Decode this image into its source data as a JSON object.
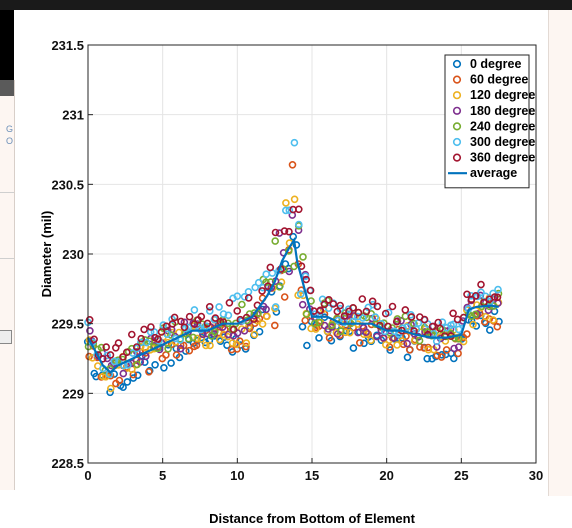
{
  "chart_data": {
    "type": "scatter",
    "title": "",
    "xlabel": "Distance from Bottom of Element",
    "ylabel": "Diameter  (mil)",
    "xlim": [
      0,
      30
    ],
    "ylim": [
      228.5,
      231.5
    ],
    "xticks": [
      "0",
      "5",
      "10",
      "15",
      "20",
      "25",
      "30"
    ],
    "yticks": [
      "228.5",
      "229",
      "229.5",
      "230",
      "230.5",
      "231",
      "231.5"
    ],
    "grid": true,
    "legend_position": "top-right",
    "series": [
      {
        "name": "0 degree",
        "color": "#0072BD",
        "marker": "circle"
      },
      {
        "name": "60 degree",
        "color": "#D95319",
        "marker": "circle"
      },
      {
        "name": "120 degree",
        "color": "#EDB120",
        "marker": "circle"
      },
      {
        "name": "180 degree",
        "color": "#7E2F8E",
        "marker": "circle"
      },
      {
        "name": "240 degree",
        "color": "#77AC30",
        "marker": "circle"
      },
      {
        "name": "300 degree",
        "color": "#4DBEEE",
        "marker": "circle"
      },
      {
        "name": "360 degree",
        "color": "#A2142F",
        "marker": "circle"
      },
      {
        "name": "average",
        "color": "#0072BD",
        "marker": "line"
      }
    ],
    "average": {
      "x": [
        0,
        0.5,
        1,
        1.5,
        2,
        3,
        4,
        5,
        6,
        7,
        8,
        9,
        10,
        11,
        12,
        12.5,
        13,
        13.5,
        13.8,
        14,
        14.5,
        15,
        16,
        17,
        18,
        19,
        20,
        21,
        22,
        23,
        24,
        25,
        25.5,
        26,
        27,
        27.5
      ],
      "y": [
        229.4,
        229.3,
        229.2,
        229.15,
        229.2,
        229.25,
        229.3,
        229.35,
        229.4,
        229.45,
        229.45,
        229.5,
        229.5,
        229.55,
        229.7,
        229.8,
        229.95,
        230.05,
        230.1,
        229.95,
        229.75,
        229.55,
        229.55,
        229.5,
        229.5,
        229.5,
        229.45,
        229.45,
        229.42,
        229.4,
        229.4,
        229.42,
        229.6,
        229.62,
        229.63,
        229.62
      ]
    }
  }
}
